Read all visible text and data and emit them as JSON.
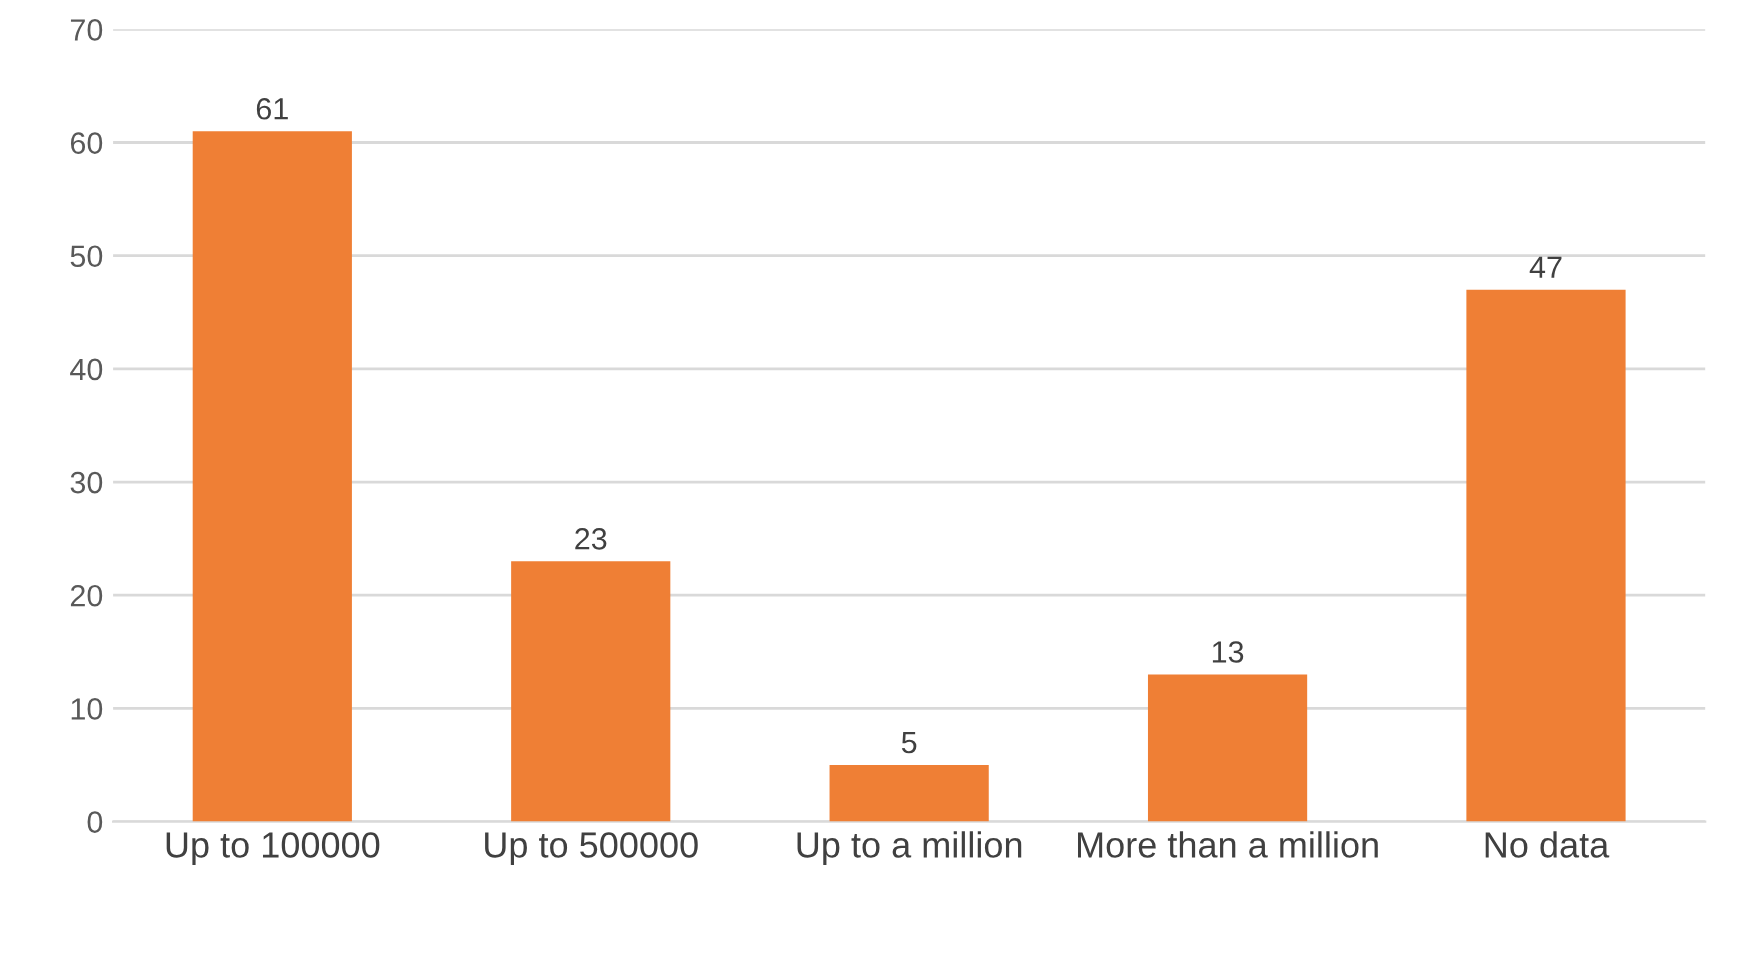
{
  "chart_data": {
    "type": "bar",
    "categories": [
      "Up to 100000",
      "Up to 500000",
      "Up to a million",
      "More than a million",
      "No data"
    ],
    "values": [
      61,
      23,
      5,
      13,
      47
    ],
    "color": "#ef7f35",
    "ylim": [
      0,
      70
    ],
    "yticks": [
      0,
      10,
      20,
      30,
      40,
      50,
      60,
      70
    ],
    "grid": "y",
    "data_labels": true
  }
}
